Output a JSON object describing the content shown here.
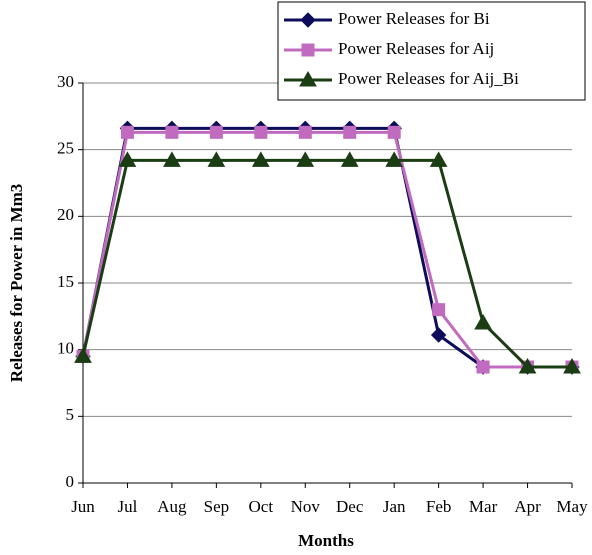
{
  "chart_data": {
    "type": "line",
    "x_label": "Months",
    "y_label": "Releases for Power in Mm3",
    "categories": [
      "Jun",
      "Jul",
      "Aug",
      "Sep",
      "Oct",
      "Nov",
      "Dec",
      "Jan",
      "Feb",
      "Mar",
      "Apr",
      "May"
    ],
    "series": [
      {
        "name": "Power Releases for Bi",
        "color": "#0d0d5a",
        "marker": "diamond",
        "values": [
          9.5,
          26.6,
          26.6,
          26.6,
          26.6,
          26.6,
          26.6,
          26.6,
          11.1,
          8.7,
          8.7,
          8.7
        ]
      },
      {
        "name": "Power Releases for Aij",
        "color": "#c06bbf",
        "marker": "square",
        "values": [
          9.5,
          26.3,
          26.3,
          26.3,
          26.3,
          26.3,
          26.3,
          26.3,
          13,
          8.7,
          8.7,
          8.7
        ]
      },
      {
        "name": "Power Releases for Aij_Bi",
        "color": "#1b3d13",
        "marker": "triangle",
        "values": [
          9.5,
          24.2,
          24.2,
          24.2,
          24.2,
          24.2,
          24.2,
          24.2,
          24.2,
          12,
          8.7,
          8.7
        ]
      }
    ],
    "ylim": [
      0,
      30
    ],
    "yticks": [
      0,
      5,
      10,
      15,
      20,
      25,
      30
    ],
    "grid": true,
    "legend": "top-right"
  }
}
